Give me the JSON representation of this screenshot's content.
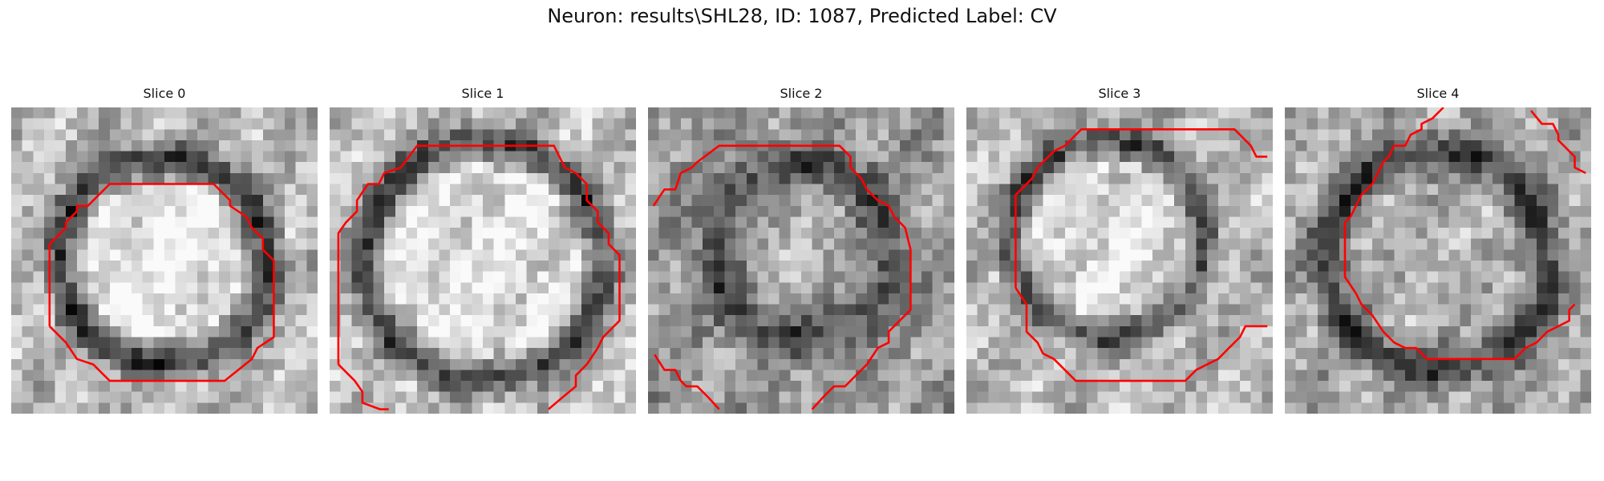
{
  "figure": {
    "title": "Neuron: results\\SHL28, ID: 1087, Predicted Label: CV"
  },
  "panels": [
    {
      "title": "Slice 0"
    },
    {
      "title": "Slice 1"
    },
    {
      "title": "Slice 2"
    },
    {
      "title": "Slice 3"
    },
    {
      "title": "Slice 4"
    }
  ],
  "colors": {
    "contour": "#ff0000",
    "image_colormap": "gray"
  }
}
